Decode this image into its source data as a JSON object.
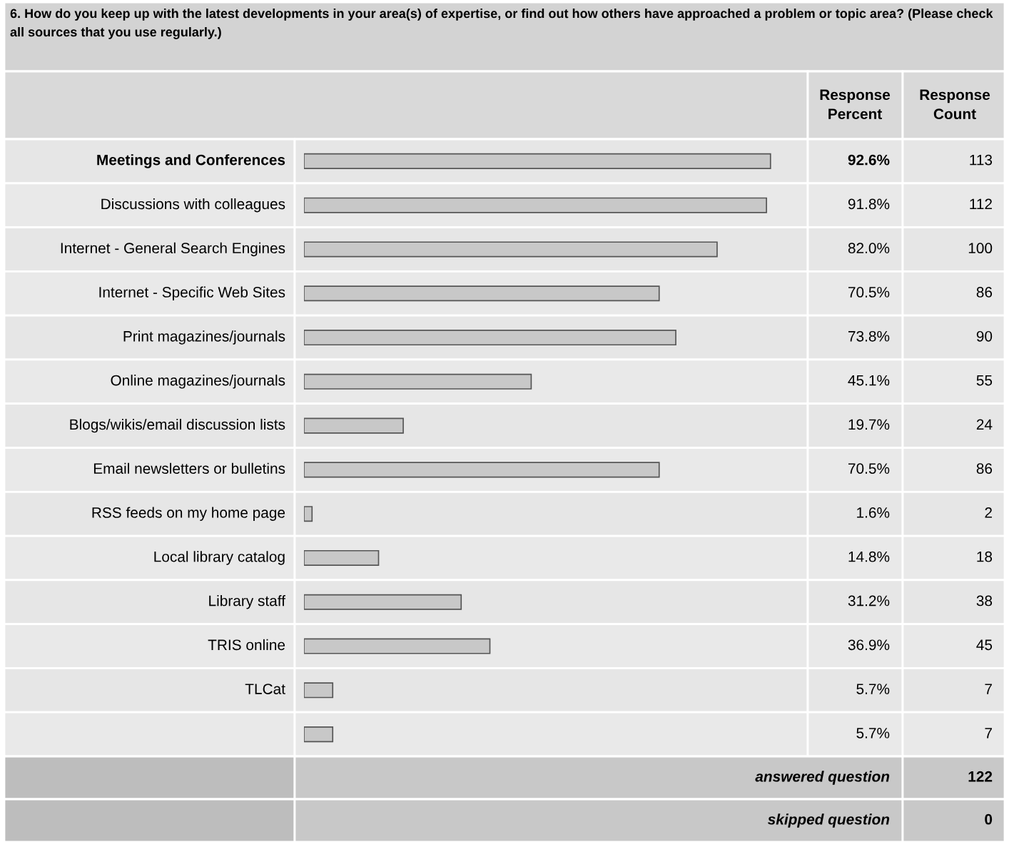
{
  "chart_data": {
    "type": "bar",
    "orientation": "horizontal",
    "title": "6. How do you keep up with the latest developments in your area(s) of expertise, or find out how others have approached a problem or topic area? (Please check all sources that you use regularly.)",
    "categories": [
      "Meetings and Conferences",
      "Discussions with colleagues",
      "Internet - General Search Engines",
      "Internet - Specific Web Sites",
      "Print magazines/journals",
      "Online magazines/journals",
      "Blogs/wikis/email discussion lists",
      "Email newsletters or bulletins",
      "RSS feeds on my home page",
      "Local library catalog",
      "Library staff",
      "TRIS online",
      "TLCat",
      null
    ],
    "values": [
      92.6,
      91.8,
      82.0,
      70.5,
      73.8,
      45.1,
      19.7,
      70.5,
      1.6,
      14.8,
      31.2,
      36.9,
      5.7,
      5.7
    ],
    "value_labels": [
      "92.6%",
      "91.8%",
      "82.0%",
      "70.5%",
      "73.8%",
      "45.1%",
      "19.7%",
      "70.5%",
      "1.6%",
      "14.8%",
      "31.2%",
      "36.9%",
      "5.7%",
      "5.7%"
    ],
    "color": "#c8c8c8",
    "annotations": [
      "Response Percent",
      "Response Count",
      "113",
      "112",
      "100",
      "86",
      "90",
      "55",
      "24",
      "86",
      "2",
      "18",
      "38",
      "45",
      "7",
      "7",
      "answered question",
      "122",
      "skipped question",
      "0"
    ]
  }
}
